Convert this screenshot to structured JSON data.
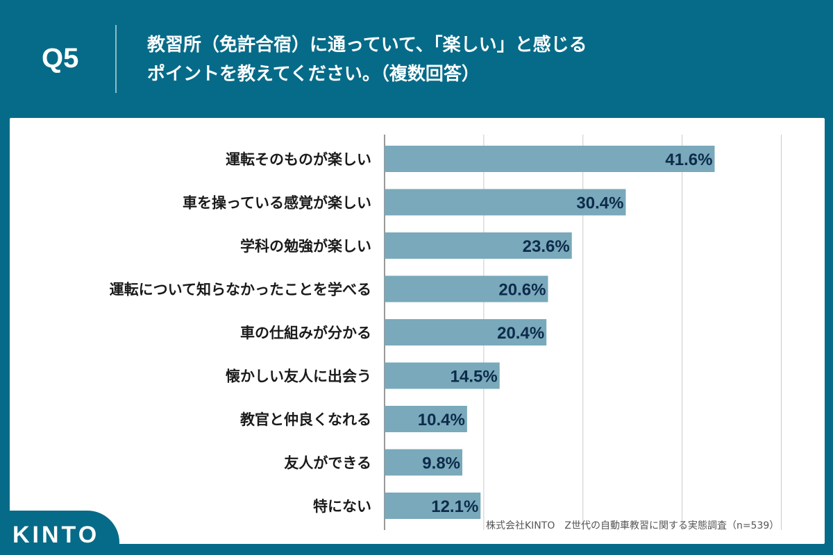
{
  "header": {
    "question_number": "Q5",
    "question_line1": "教習所（免許合宿）に通っていて、「楽しい」と感じる",
    "question_line2": "ポイントを教えてください。（複数回答）"
  },
  "chart_data": {
    "type": "bar",
    "orientation": "horizontal",
    "categories": [
      "運転そのものが楽しい",
      "車を操っている感覚が楽しい",
      "学科の勉強が楽しい",
      "運転について知らなかったことを学べる",
      "車の仕組みが分かる",
      "懐かしい友人に出会う",
      "教官と仲良くなれる",
      "友人ができる",
      "特にない"
    ],
    "values": [
      41.6,
      30.4,
      23.6,
      20.6,
      20.4,
      14.5,
      10.4,
      9.8,
      12.1
    ],
    "value_labels": [
      "41.6%",
      "30.4%",
      "23.6%",
      "20.6%",
      "20.4%",
      "14.5%",
      "10.4%",
      "9.8%",
      "12.1%"
    ],
    "xlim": [
      0,
      50
    ],
    "grid_step": 12.5,
    "grid": true,
    "bar_color": "#79a9bb",
    "label_color": "#0d2b4a"
  },
  "footer": {
    "source": "株式会社KINTO　Z世代の自動車教習に関する実態調査（n=539）",
    "logo": "KINTO"
  },
  "colors": {
    "background": "#066b88",
    "panel": "#ffffff"
  }
}
